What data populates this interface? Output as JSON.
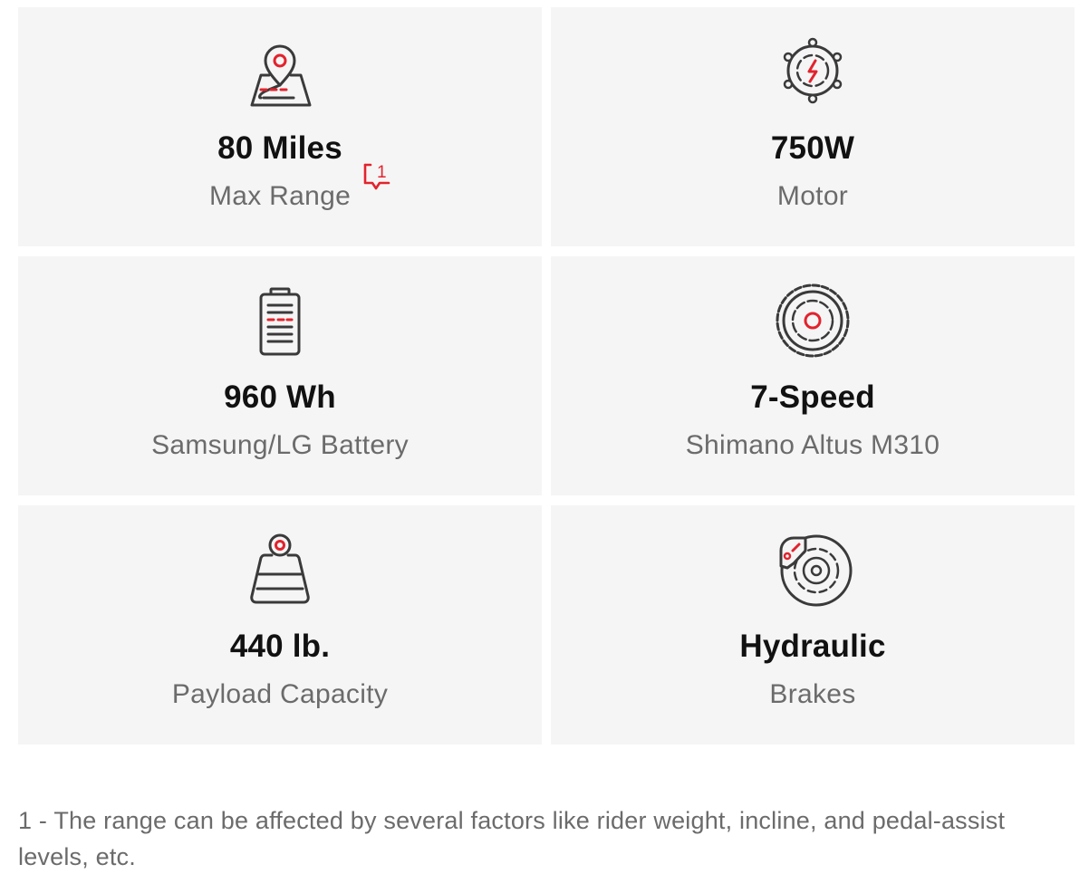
{
  "specs": [
    {
      "value": "80 Miles",
      "label": "Max Range",
      "icon": "map-pin-icon",
      "footnote_ref": "1"
    },
    {
      "value": "750W",
      "label": "Motor",
      "icon": "motor-icon"
    },
    {
      "value": "960 Wh",
      "label": "Samsung/LG Battery",
      "icon": "battery-icon"
    },
    {
      "value": "7-Speed",
      "label": "Shimano Altus M310",
      "icon": "gear-icon"
    },
    {
      "value": "440 lb.",
      "label": "Payload Capacity",
      "icon": "weight-icon"
    },
    {
      "value": "Hydraulic",
      "label": "Brakes",
      "icon": "brake-disc-icon"
    }
  ],
  "footnote": "1 - The range can be affected by several factors like rider weight, incline, and pedal-assist levels, etc.",
  "colors": {
    "accent": "#e2232d",
    "icon_stroke": "#3a3a3a",
    "card_bg": "#f5f5f5",
    "label": "#6b6b6b"
  }
}
